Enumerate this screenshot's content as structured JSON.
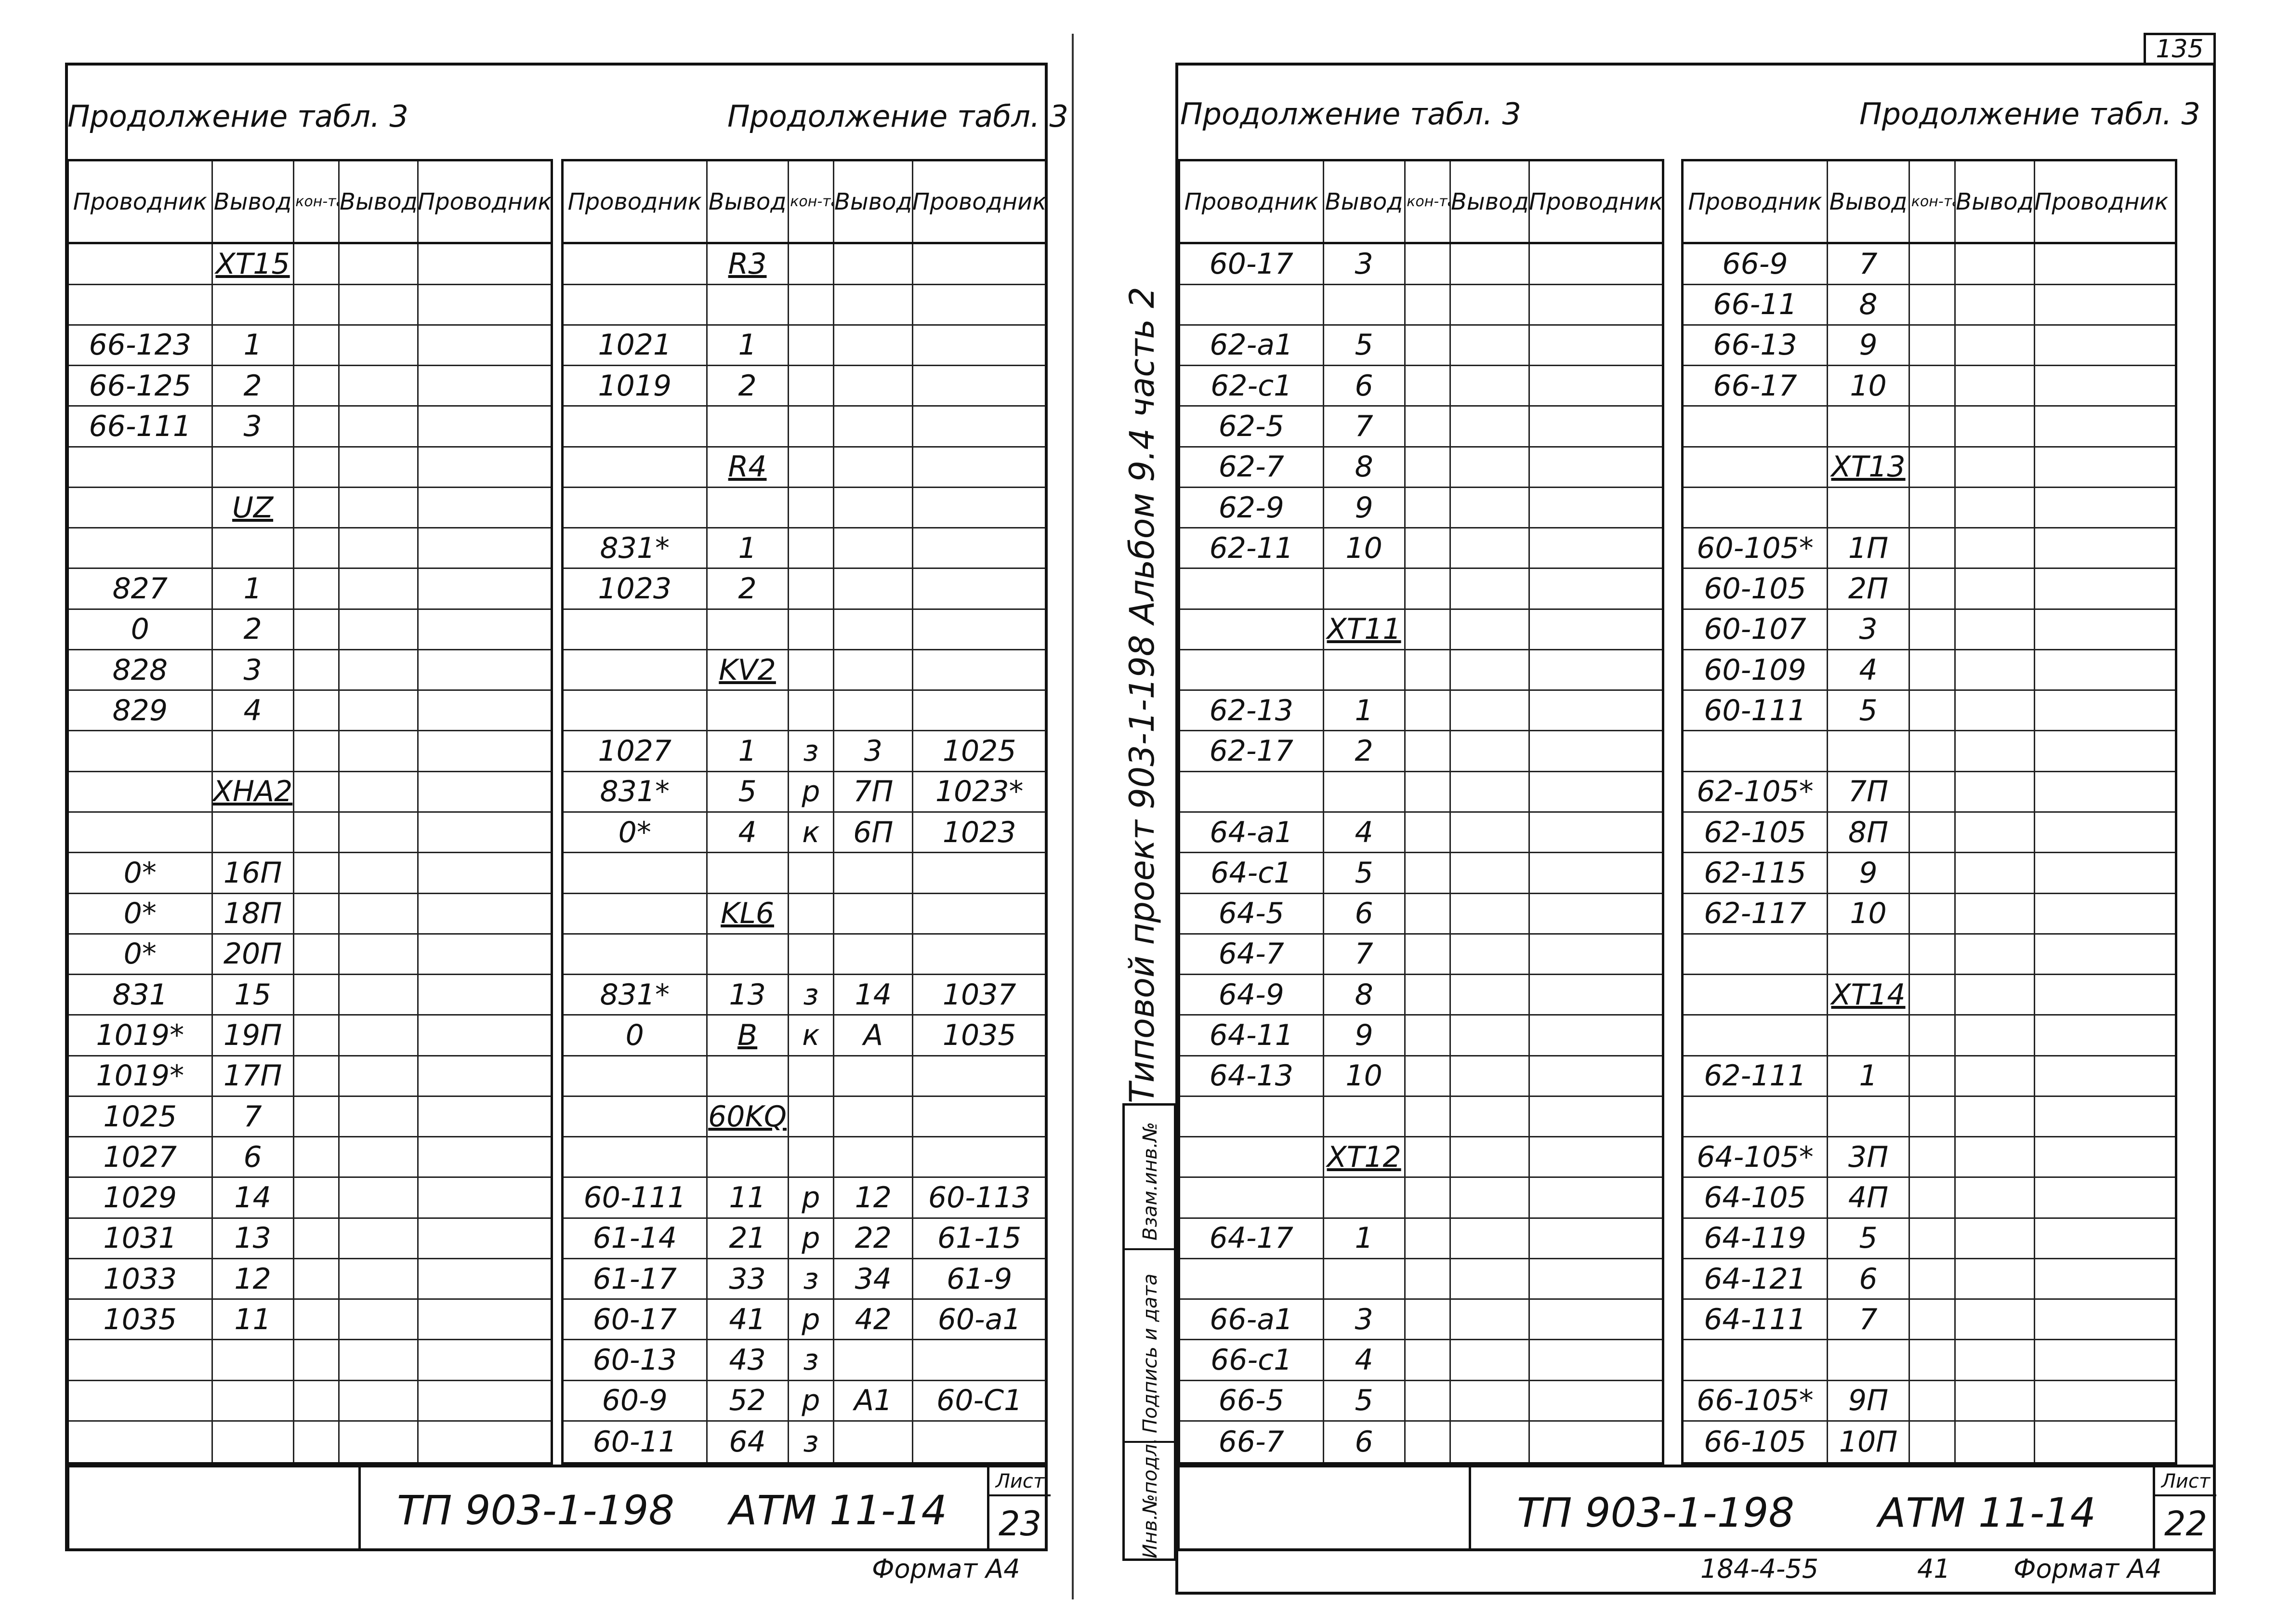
{
  "page_number": "135",
  "vertical_title": "Типовой проект 903-1-198 Альбом 9.4 часть 2",
  "binder_labels": [
    "Инв.№подл.",
    "Подпись и дата",
    "Взам.инв.№"
  ],
  "misc_bottom": "184-4-55",
  "misc_bottom2": "41",
  "left_sheet": {
    "heading_left": "Продолжение табл. 3",
    "heading_right": "Продолжение табл. 3",
    "stamp_project": "ТП 903-1-198",
    "stamp_code": "АТМ 11-14",
    "sheet_label": "Лист",
    "sheet_number": "23",
    "format_note": "Формат А4",
    "header": [
      "Проводник",
      "Вывод",
      "Вид кон-такта",
      "Вывод",
      "Проводник"
    ],
    "table_a": [
      [
        "",
        "ХТ15",
        "",
        "",
        ""
      ],
      [
        "",
        "",
        "",
        "",
        ""
      ],
      [
        "66-123",
        "1",
        "",
        "",
        ""
      ],
      [
        "66-125",
        "2",
        "",
        "",
        ""
      ],
      [
        "66-111",
        "3",
        "",
        "",
        ""
      ],
      [
        "",
        "",
        "",
        "",
        ""
      ],
      [
        "",
        "UZ",
        "",
        "",
        ""
      ],
      [
        "",
        "",
        "",
        "",
        ""
      ],
      [
        "827",
        "1",
        "",
        "",
        ""
      ],
      [
        "0",
        "2",
        "",
        "",
        ""
      ],
      [
        "828",
        "3",
        "",
        "",
        ""
      ],
      [
        "829",
        "4",
        "",
        "",
        ""
      ],
      [
        "",
        "",
        "",
        "",
        ""
      ],
      [
        "",
        "ХНА2",
        "",
        "",
        ""
      ],
      [
        "",
        "",
        "",
        "",
        ""
      ],
      [
        "0*",
        "16П",
        "",
        "",
        ""
      ],
      [
        "0*",
        "18П",
        "",
        "",
        ""
      ],
      [
        "0*",
        "20П",
        "",
        "",
        ""
      ],
      [
        "831",
        "15",
        "",
        "",
        ""
      ],
      [
        "1019*",
        "19П",
        "",
        "",
        ""
      ],
      [
        "1019*",
        "17П",
        "",
        "",
        ""
      ],
      [
        "1025",
        "7",
        "",
        "",
        ""
      ],
      [
        "1027",
        "6",
        "",
        "",
        ""
      ],
      [
        "1029",
        "14",
        "",
        "",
        ""
      ],
      [
        "1031",
        "13",
        "",
        "",
        ""
      ],
      [
        "1033",
        "12",
        "",
        "",
        ""
      ],
      [
        "1035",
        "11",
        "",
        "",
        ""
      ],
      [
        "",
        "",
        "",
        "",
        ""
      ],
      [
        "",
        "",
        "",
        "",
        ""
      ],
      [
        "",
        "",
        "",
        "",
        ""
      ]
    ],
    "table_b": [
      [
        "",
        "R3",
        "",
        "",
        ""
      ],
      [
        "",
        "",
        "",
        "",
        ""
      ],
      [
        "1021",
        "1",
        "",
        "",
        ""
      ],
      [
        "1019",
        "2",
        "",
        "",
        ""
      ],
      [
        "",
        "",
        "",
        "",
        ""
      ],
      [
        "",
        "R4",
        "",
        "",
        ""
      ],
      [
        "",
        "",
        "",
        "",
        ""
      ],
      [
        "831*",
        "1",
        "",
        "",
        ""
      ],
      [
        "1023",
        "2",
        "",
        "",
        ""
      ],
      [
        "",
        "",
        "",
        "",
        ""
      ],
      [
        "",
        "KV2",
        "",
        "",
        ""
      ],
      [
        "",
        "",
        "",
        "",
        ""
      ],
      [
        "1027",
        "1",
        "з",
        "3",
        "1025"
      ],
      [
        "831*",
        "5",
        "р",
        "7П",
        "1023*"
      ],
      [
        "0*",
        "4",
        "к",
        "6П",
        "1023"
      ],
      [
        "",
        "",
        "",
        "",
        ""
      ],
      [
        "",
        "KL6",
        "",
        "",
        ""
      ],
      [
        "",
        "",
        "",
        "",
        ""
      ],
      [
        "831*",
        "13",
        "з",
        "14",
        "1037"
      ],
      [
        "0",
        "В",
        "к",
        "А",
        "1035"
      ],
      [
        "",
        "",
        "",
        "",
        ""
      ],
      [
        "",
        "60KQ",
        "",
        "",
        ""
      ],
      [
        "",
        "",
        "",
        "",
        ""
      ],
      [
        "60-111",
        "11",
        "р",
        "12",
        "60-113"
      ],
      [
        "61-14",
        "21",
        "р",
        "22",
        "61-15"
      ],
      [
        "61-17",
        "33",
        "з",
        "34",
        "61-9"
      ],
      [
        "60-17",
        "41",
        "р",
        "42",
        "60-а1"
      ],
      [
        "60-13",
        "43",
        "з",
        "",
        ""
      ],
      [
        "60-9",
        "52",
        "р",
        "А1",
        "60-С1"
      ],
      [
        "60-11",
        "64",
        "з",
        "",
        ""
      ]
    ]
  },
  "right_sheet": {
    "heading_left": "Продолжение табл. 3",
    "heading_right": "Продолжение табл. 3",
    "stamp_project": "ТП 903-1-198",
    "stamp_code": "АТМ 11-14",
    "sheet_label": "Лист",
    "sheet_number": "22",
    "format_note": "Формат А4",
    "header": [
      "Проводник",
      "Вывод",
      "Вид кон-такта",
      "Вывод",
      "Проводник"
    ],
    "table_a": [
      [
        "60-17",
        "3",
        "",
        "",
        ""
      ],
      [
        "",
        "",
        "",
        "",
        ""
      ],
      [
        "62-а1",
        "5",
        "",
        "",
        ""
      ],
      [
        "62-с1",
        "6",
        "",
        "",
        ""
      ],
      [
        "62-5",
        "7",
        "",
        "",
        ""
      ],
      [
        "62-7",
        "8",
        "",
        "",
        ""
      ],
      [
        "62-9",
        "9",
        "",
        "",
        ""
      ],
      [
        "62-11",
        "10",
        "",
        "",
        ""
      ],
      [
        "",
        "",
        "",
        "",
        ""
      ],
      [
        "",
        "ХТ11",
        "",
        "",
        ""
      ],
      [
        "",
        "",
        "",
        "",
        ""
      ],
      [
        "62-13",
        "1",
        "",
        "",
        ""
      ],
      [
        "62-17",
        "2",
        "",
        "",
        ""
      ],
      [
        "",
        "",
        "",
        "",
        ""
      ],
      [
        "64-а1",
        "4",
        "",
        "",
        ""
      ],
      [
        "64-с1",
        "5",
        "",
        "",
        ""
      ],
      [
        "64-5",
        "6",
        "",
        "",
        ""
      ],
      [
        "64-7",
        "7",
        "",
        "",
        ""
      ],
      [
        "64-9",
        "8",
        "",
        "",
        ""
      ],
      [
        "64-11",
        "9",
        "",
        "",
        ""
      ],
      [
        "64-13",
        "10",
        "",
        "",
        ""
      ],
      [
        "",
        "",
        "",
        "",
        ""
      ],
      [
        "",
        "ХТ12",
        "",
        "",
        ""
      ],
      [
        "",
        "",
        "",
        "",
        ""
      ],
      [
        "64-17",
        "1",
        "",
        "",
        ""
      ],
      [
        "",
        "",
        "",
        "",
        ""
      ],
      [
        "66-а1",
        "3",
        "",
        "",
        ""
      ],
      [
        "66-с1",
        "4",
        "",
        "",
        ""
      ],
      [
        "66-5",
        "5",
        "",
        "",
        ""
      ],
      [
        "66-7",
        "6",
        "",
        "",
        ""
      ]
    ],
    "table_b": [
      [
        "66-9",
        "7",
        "",
        "",
        ""
      ],
      [
        "66-11",
        "8",
        "",
        "",
        ""
      ],
      [
        "66-13",
        "9",
        "",
        "",
        ""
      ],
      [
        "66-17",
        "10",
        "",
        "",
        ""
      ],
      [
        "",
        "",
        "",
        "",
        ""
      ],
      [
        "",
        "ХТ13",
        "",
        "",
        ""
      ],
      [
        "",
        "",
        "",
        "",
        ""
      ],
      [
        "60-105*",
        "1П",
        "",
        "",
        ""
      ],
      [
        "60-105",
        "2П",
        "",
        "",
        ""
      ],
      [
        "60-107",
        "3",
        "",
        "",
        ""
      ],
      [
        "60-109",
        "4",
        "",
        "",
        ""
      ],
      [
        "60-111",
        "5",
        "",
        "",
        ""
      ],
      [
        "",
        "",
        "",
        "",
        ""
      ],
      [
        "62-105*",
        "7П",
        "",
        "",
        ""
      ],
      [
        "62-105",
        "8П",
        "",
        "",
        ""
      ],
      [
        "62-115",
        "9",
        "",
        "",
        ""
      ],
      [
        "62-117",
        "10",
        "",
        "",
        ""
      ],
      [
        "",
        "",
        "",
        "",
        ""
      ],
      [
        "",
        "ХТ14",
        "",
        "",
        ""
      ],
      [
        "",
        "",
        "",
        "",
        ""
      ],
      [
        "62-111",
        "1",
        "",
        "",
        ""
      ],
      [
        "",
        "",
        "",
        "",
        ""
      ],
      [
        "64-105*",
        "3П",
        "",
        "",
        ""
      ],
      [
        "64-105",
        "4П",
        "",
        "",
        ""
      ],
      [
        "64-119",
        "5",
        "",
        "",
        ""
      ],
      [
        "64-121",
        "6",
        "",
        "",
        ""
      ],
      [
        "64-111",
        "7",
        "",
        "",
        ""
      ],
      [
        "",
        "",
        "",
        "",
        ""
      ],
      [
        "66-105*",
        "9П",
        "",
        "",
        ""
      ],
      [
        "66-105",
        "10П",
        "",
        "",
        ""
      ]
    ]
  }
}
